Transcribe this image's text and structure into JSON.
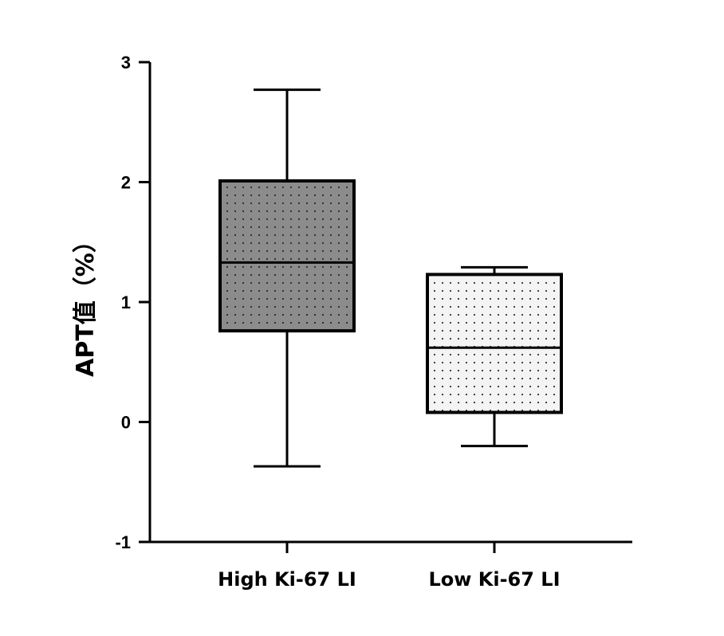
{
  "chart_data": {
    "type": "box",
    "ylabel": "APT值（%）",
    "ylim": [
      -1,
      3
    ],
    "yticks": [
      -1,
      0,
      1,
      2,
      3
    ],
    "ytick_labels": [
      "-1",
      "0",
      "1",
      "2",
      "3"
    ],
    "categories": [
      "High Ki-67 LI",
      "Low Ki-67 LI"
    ],
    "boxes": [
      {
        "category": "High Ki-67 LI",
        "min": -0.37,
        "q1": 0.76,
        "median": 1.33,
        "q3": 2.01,
        "max": 2.77,
        "fill": "#8c8c8c",
        "pattern_dot": "#2a2a2a"
      },
      {
        "category": "Low Ki-67 LI",
        "min": -0.2,
        "q1": 0.08,
        "median": 0.62,
        "q3": 1.23,
        "max": 1.29,
        "fill": "#f4f4f4",
        "pattern_dot": "#333333"
      }
    ],
    "grid": false,
    "legend": "none"
  }
}
